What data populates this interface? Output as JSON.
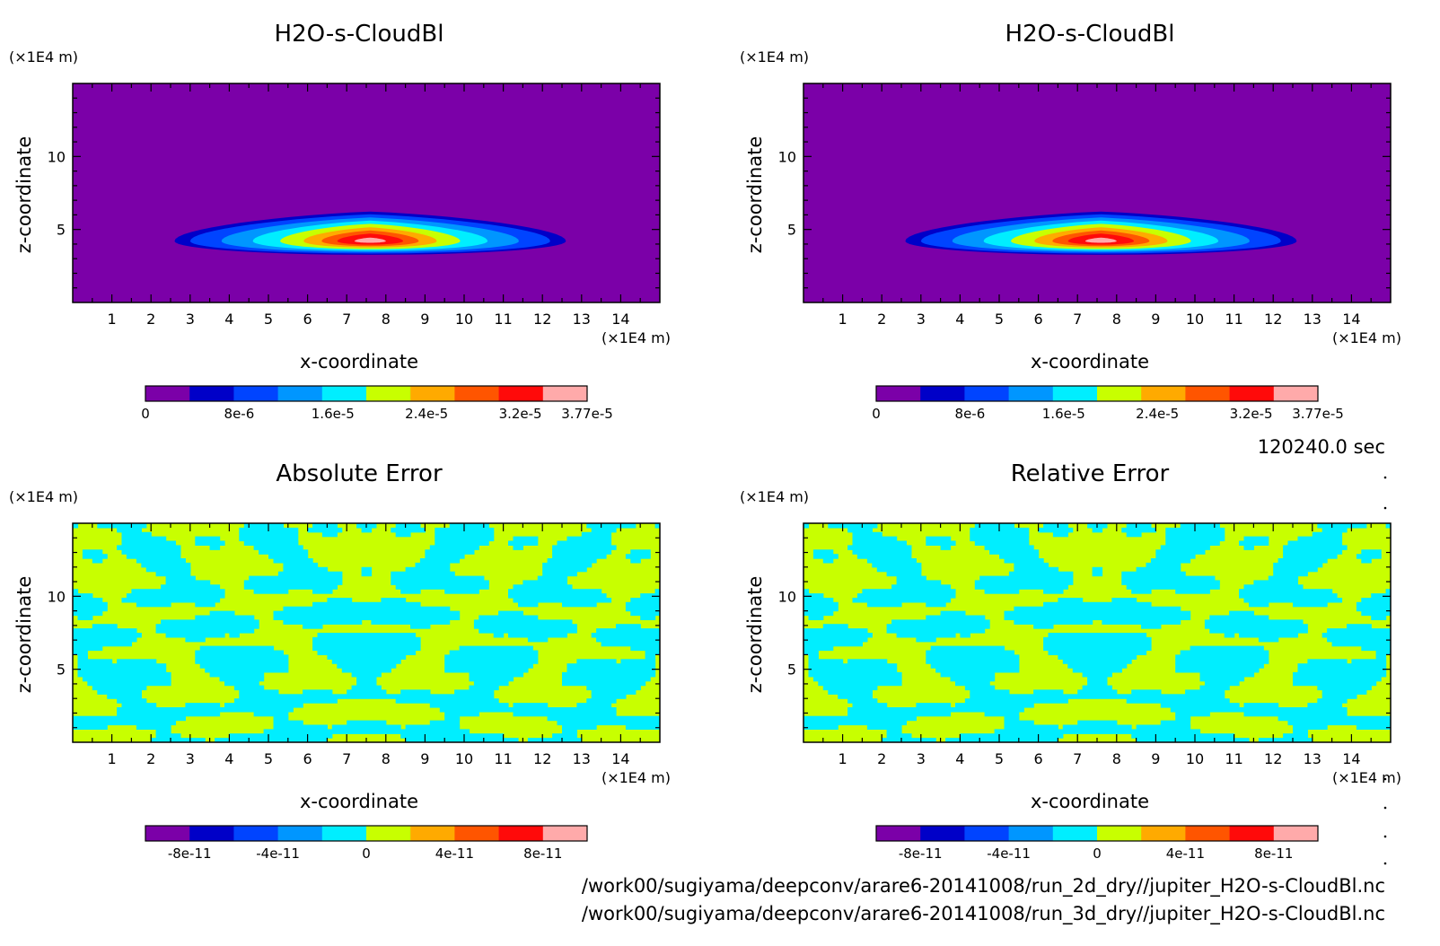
{
  "figure": {
    "time_label": "120240.0 sec",
    "file_paths": [
      "/work00/sugiyama/deepconv/arare6-20141008/run_2d_dry//jupiter_H2O-s-CloudBl.nc",
      "/work00/sugiyama/deepconv/arare6-20141008/run_3d_dry//jupiter_H2O-s-CloudBl.nc"
    ]
  },
  "chart_data": [
    {
      "type": "heatmap",
      "id": "panel-top-left",
      "title": "H2O-s-CloudBl",
      "xlabel": "x-coordinate",
      "ylabel": "z-coordinate",
      "x_unit": "(×1E4 m)",
      "y_unit": "(×1E4 m)",
      "xlim": [
        0,
        15
      ],
      "ylim": [
        0,
        15
      ],
      "x_ticks": [
        "1",
        "2",
        "3",
        "4",
        "5",
        "6",
        "7",
        "8",
        "9",
        "10",
        "11",
        "12",
        "13",
        "14"
      ],
      "y_ticks": [
        "5",
        "10"
      ],
      "field": "cloud",
      "colorbar_labels": [
        "0",
        "8e-6",
        "1.6e-5",
        "2.4e-5",
        "3.2e-5",
        "3.77e-5"
      ],
      "colorbar_range": [
        0,
        3.77e-05
      ],
      "colors": [
        "#7b00a8",
        "#0000c8",
        "#0044ff",
        "#0096ff",
        "#00eeff",
        "#c8ff00",
        "#ffaa00",
        "#ff5500",
        "#ff0a0a",
        "#ffaaaa"
      ]
    },
    {
      "type": "heatmap",
      "id": "panel-top-right",
      "title": "H2O-s-CloudBl",
      "xlabel": "x-coordinate",
      "ylabel": "z-coordinate",
      "x_unit": "(×1E4 m)",
      "y_unit": "(×1E4 m)",
      "xlim": [
        0,
        15
      ],
      "ylim": [
        0,
        15
      ],
      "x_ticks": [
        "1",
        "2",
        "3",
        "4",
        "5",
        "6",
        "7",
        "8",
        "9",
        "10",
        "11",
        "12",
        "13",
        "14"
      ],
      "y_ticks": [
        "5",
        "10"
      ],
      "field": "cloud",
      "colorbar_labels": [
        "0",
        "8e-6",
        "1.6e-5",
        "2.4e-5",
        "3.2e-5",
        "3.77e-5"
      ],
      "colorbar_range": [
        0,
        3.77e-05
      ],
      "colors": [
        "#7b00a8",
        "#0000c8",
        "#0044ff",
        "#0096ff",
        "#00eeff",
        "#c8ff00",
        "#ffaa00",
        "#ff5500",
        "#ff0a0a",
        "#ffaaaa"
      ]
    },
    {
      "type": "heatmap",
      "id": "panel-bottom-left",
      "title": "Absolute Error",
      "xlabel": "x-coordinate",
      "ylabel": "z-coordinate",
      "x_unit": "(×1E4 m)",
      "y_unit": "(×1E4 m)",
      "xlim": [
        0,
        15
      ],
      "ylim": [
        0,
        15
      ],
      "x_ticks": [
        "1",
        "2",
        "3",
        "4",
        "5",
        "6",
        "7",
        "8",
        "9",
        "10",
        "11",
        "12",
        "13",
        "14"
      ],
      "y_ticks": [
        "5",
        "10"
      ],
      "field": "error",
      "colorbar_labels": [
        "-8e-11",
        "-4e-11",
        "0",
        "4e-11",
        "8e-11"
      ],
      "colorbar_range": [
        -1e-10,
        1e-10
      ],
      "colors": [
        "#7b00a8",
        "#0000c8",
        "#0044ff",
        "#0096ff",
        "#00eeff",
        "#c8ff00",
        "#ffaa00",
        "#ff5500",
        "#ff0a0a",
        "#ffaaaa"
      ]
    },
    {
      "type": "heatmap",
      "id": "panel-bottom-right",
      "title": "Relative Error",
      "xlabel": "x-coordinate",
      "ylabel": "z-coordinate",
      "x_unit": "(×1E4 m)",
      "y_unit": "(×1E4 m)",
      "xlim": [
        0,
        15
      ],
      "ylim": [
        0,
        15
      ],
      "x_ticks": [
        "1",
        "2",
        "3",
        "4",
        "5",
        "6",
        "7",
        "8",
        "9",
        "10",
        "11",
        "12",
        "13",
        "14"
      ],
      "y_ticks": [
        "5",
        "10"
      ],
      "field": "error",
      "colorbar_labels": [
        "-8e-11",
        "-4e-11",
        "0",
        "4e-11",
        "8e-11"
      ],
      "colorbar_range": [
        -1e-10,
        1e-10
      ],
      "colors": [
        "#7b00a8",
        "#0000c8",
        "#0044ff",
        "#0096ff",
        "#00eeff",
        "#c8ff00",
        "#ffaa00",
        "#ff5500",
        "#ff0a0a",
        "#ffaaaa"
      ]
    }
  ]
}
